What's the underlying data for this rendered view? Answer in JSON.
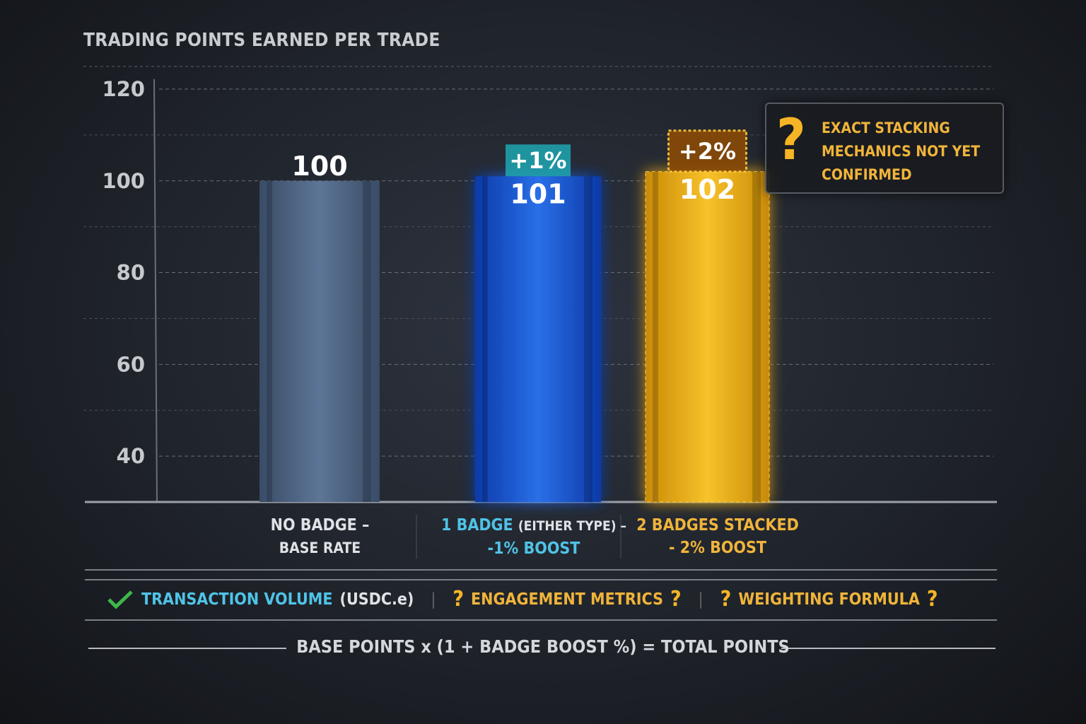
{
  "chart_data": {
    "type": "bar",
    "title": "TRADING POINTS EARNED PER TRADE",
    "categories": [
      "NO BADGE – BASE RATE",
      "1 BADGE (EITHER TYPE) – -1% BOOST",
      "2 BADGES STACKED - 2% BOOST"
    ],
    "values": [
      100,
      101,
      102
    ],
    "data_labels": [
      "100",
      "101",
      "102"
    ],
    "boost_labels": [
      "",
      "+1%",
      "+2%"
    ],
    "yticks": [
      "40",
      "60",
      "80",
      "100",
      "120"
    ],
    "ytick_values": [
      40,
      60,
      80,
      100,
      120
    ],
    "ylim": [
      30,
      120
    ],
    "grid": true,
    "colors": [
      "#4a607e",
      "#1a55c8",
      "#e6a812"
    ],
    "category_labels": [
      {
        "line1a": "NO BADGE –",
        "line1b": "",
        "line2": "BASE RATE"
      },
      {
        "line1a": "1 BADGE",
        "line1b": "(EITHER TYPE) –",
        "line2": "-1% BOOST"
      },
      {
        "line1a": "2 BADGES",
        "line1b": "STACKED",
        "line2": "- 2% BOOST"
      }
    ]
  },
  "callout": {
    "icon": "question-mark-icon",
    "text": "EXACT STACKING MECHANICS NOT YET CONFIRMED"
  },
  "factors": {
    "item1_label": "TRANSACTION VOLUME",
    "item1_unit": "(USDC.e)",
    "item1_icon": "check-icon",
    "item2_label": "ENGAGEMENT METRICS",
    "item3_label": "WEIGHTING FORMULA",
    "qmark": "?"
  },
  "formula": "BASE POINTS x (1 + BADGE BOOST %) = TOTAL POINTS"
}
